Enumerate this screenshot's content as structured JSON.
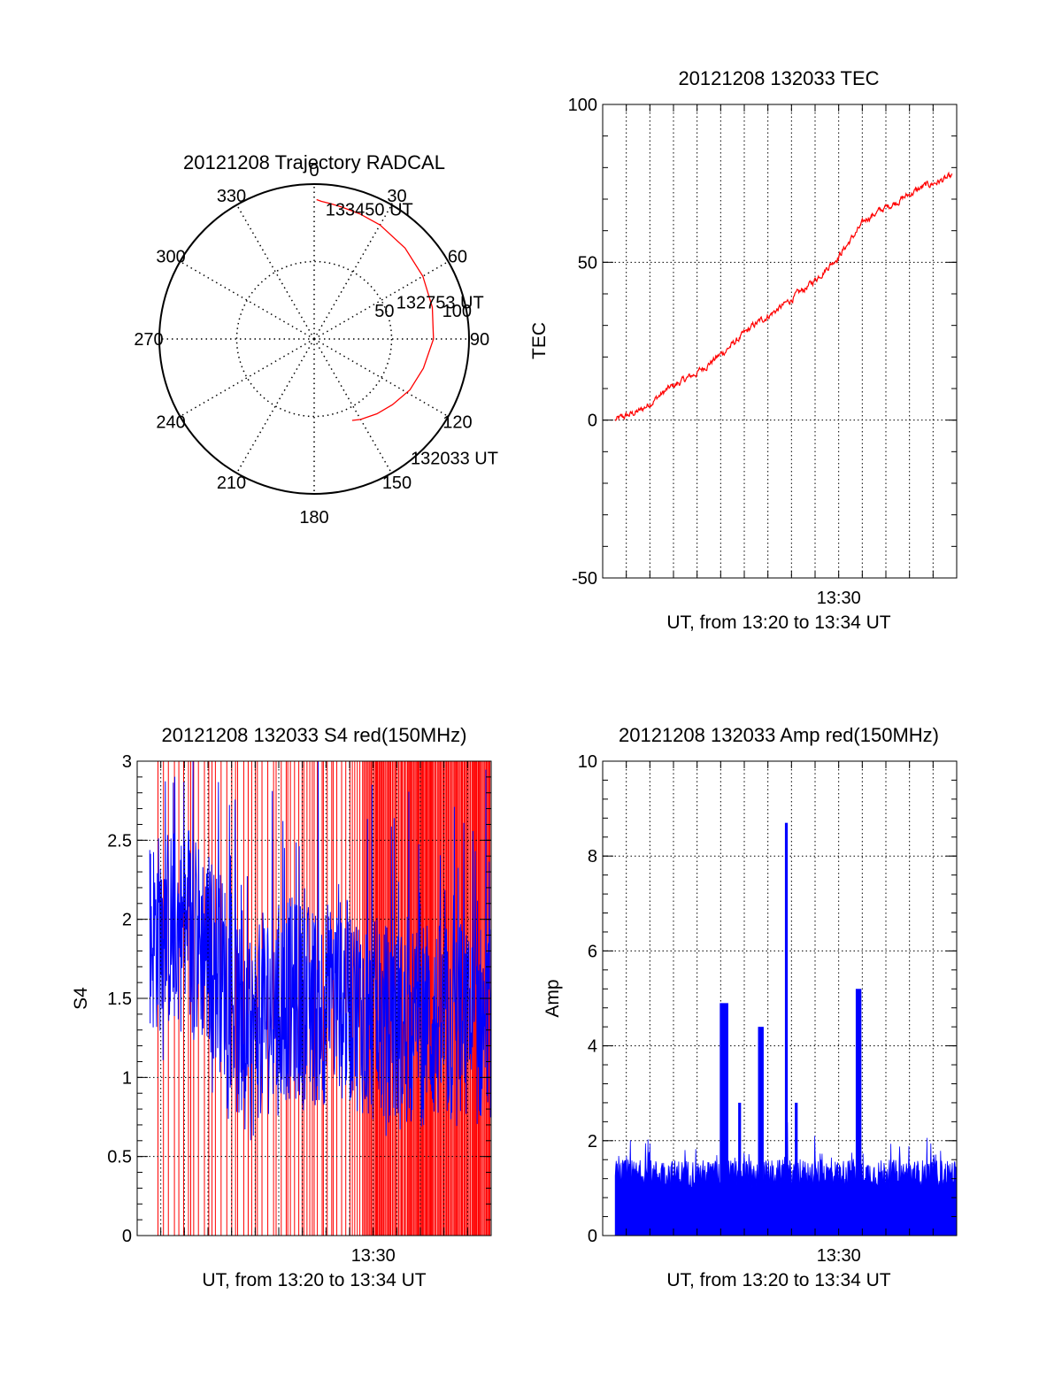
{
  "colors": {
    "red": "#ff0000",
    "blue": "#0000ff",
    "axis": "#000000"
  },
  "chart_data": [
    {
      "type": "polar",
      "title": "20121208 Trajectory RADCAL",
      "angle_labels": [
        "0",
        "30",
        "60",
        "90",
        "120",
        "150",
        "180",
        "210",
        "240",
        "270",
        "300",
        "330"
      ],
      "radial_labels": [
        "50",
        "100"
      ],
      "rmax": 100,
      "track": {
        "color": "#ff0000",
        "azimuth": [
          155,
          150,
          140,
          130,
          118,
          105,
          90,
          75,
          60,
          45,
          30,
          20,
          12,
          7,
          3,
          1
        ],
        "zenith": [
          58,
          60,
          63,
          66,
          70,
          73,
          77,
          79,
          81,
          83,
          85,
          86,
          87,
          88,
          89,
          90
        ]
      },
      "annotations": [
        {
          "text": "133450 UT",
          "azimuth": 5,
          "zenith": 84
        },
        {
          "text": "132753 UT",
          "azimuth": 66,
          "zenith": 58
        },
        {
          "text": "132033 UT",
          "azimuth": 141,
          "zenith": 99
        }
      ]
    },
    {
      "type": "line",
      "title": "20121208 132033 TEC",
      "xlabel": "UT, from 13:20 to 13:34 UT",
      "ylabel": "TEC",
      "xlim": [
        13.3333,
        13.5833
      ],
      "ylim": [
        -50,
        100
      ],
      "yticks": [
        -50,
        0,
        50,
        100
      ],
      "xticks": [
        {
          "value": 13.5,
          "label": "13:30"
        }
      ],
      "series": [
        {
          "color": "#ff0000",
          "x": [
            13.3422,
            13.36,
            13.38,
            13.4,
            13.42,
            13.44,
            13.46,
            13.48,
            13.5,
            13.52,
            13.54,
            13.56,
            13.58
          ],
          "y": [
            0,
            3,
            10,
            15,
            22,
            30,
            36,
            43,
            52,
            64,
            69,
            74,
            77
          ]
        }
      ]
    },
    {
      "type": "line",
      "title": "20121208 132033 S4 red(150MHz)",
      "xlabel": "UT, from 13:20 to 13:34 UT",
      "ylabel": "S4",
      "xlim": [
        13.3333,
        13.5833
      ],
      "ylim": [
        0,
        3
      ],
      "yticks": [
        0,
        0.5,
        1,
        1.5,
        2,
        2.5,
        3
      ],
      "xticks": [
        {
          "value": 13.5,
          "label": "13:30"
        }
      ],
      "series": [
        {
          "color": "#0000ff",
          "x_start": 13.3422,
          "x_end": 13.5833,
          "mean_profile": [
            [
              13.3422,
              1.9
            ],
            [
              13.36,
              1.95
            ],
            [
              13.38,
              1.85
            ],
            [
              13.4,
              1.55
            ],
            [
              13.41,
              1.1
            ],
            [
              13.42,
              1.4
            ],
            [
              13.44,
              1.5
            ],
            [
              13.46,
              1.45
            ],
            [
              13.48,
              1.5
            ],
            [
              13.5,
              1.35
            ],
            [
              13.52,
              1.3
            ],
            [
              13.54,
              1.35
            ],
            [
              13.56,
              1.3
            ],
            [
              13.58,
              1.35
            ]
          ]
        }
      ],
      "dropouts": {
        "color": "#ff0000",
        "value_range": [
          0,
          3
        ]
      }
    },
    {
      "type": "bar",
      "title": "20121208 132033 Amp red(150MHz)",
      "xlabel": "UT, from 13:20 to 13:34 UT",
      "ylabel": "Amp",
      "xlim": [
        13.3333,
        13.5833
      ],
      "ylim": [
        0,
        10
      ],
      "yticks": [
        0,
        2,
        4,
        6,
        8,
        10
      ],
      "xticks": [
        {
          "value": 13.5,
          "label": "13:30"
        }
      ],
      "series": [
        {
          "color": "#0000ff",
          "x_start": 13.3422,
          "x_end": 13.5833,
          "baseline_level": 1.3,
          "spikes": [
            {
              "x": 13.419,
              "width": 0.006,
              "value": 4.9
            },
            {
              "x": 13.43,
              "width": 0.002,
              "value": 2.8
            },
            {
              "x": 13.445,
              "width": 0.004,
              "value": 4.4
            },
            {
              "x": 13.463,
              "width": 0.002,
              "value": 8.7
            },
            {
              "x": 13.47,
              "width": 0.002,
              "value": 2.8
            },
            {
              "x": 13.514,
              "width": 0.004,
              "value": 5.2
            }
          ]
        }
      ]
    }
  ]
}
